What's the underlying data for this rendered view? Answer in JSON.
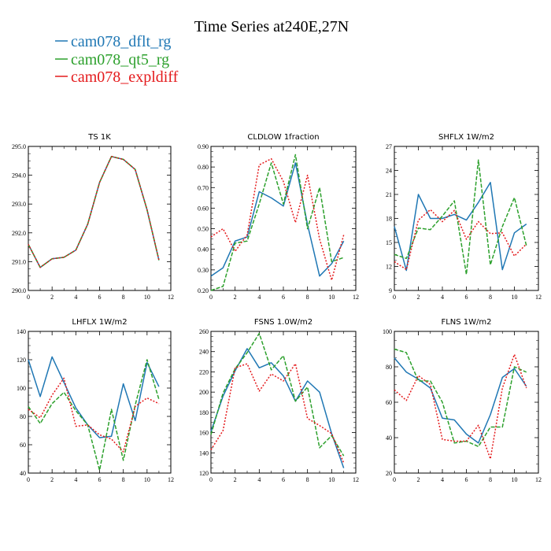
{
  "figure_title": "Time Series at240E,27N",
  "colors": {
    "dflt": "#1f77b4",
    "qt5": "#2ca02c",
    "expldiff": "#e41a1c"
  },
  "legend": [
    {
      "label": "cam078_dflt_rg",
      "color": "#1f77b4",
      "dash": "solid"
    },
    {
      "label": "cam078_qt5_rg",
      "color": "#2ca02c",
      "dash": "dashed"
    },
    {
      "label": "cam078_expldiff",
      "color": "#e41a1c",
      "dash": "dotted"
    }
  ],
  "chart_data": [
    {
      "type": "line",
      "title": "TS   1K",
      "x": [
        0,
        1,
        2,
        3,
        4,
        5,
        6,
        7,
        8,
        9,
        10,
        11
      ],
      "xlim": [
        0,
        12
      ],
      "xticks": [
        "0",
        "2",
        "4",
        "6",
        "8",
        "10",
        "12"
      ],
      "ylim": [
        290,
        295
      ],
      "yticks": [
        "290.0",
        "291.0",
        "292.0",
        "293.0",
        "294.0",
        "295.0"
      ],
      "series": [
        {
          "name": "cam078_dflt_rg",
          "values": [
            291.6,
            290.8,
            291.1,
            291.15,
            291.4,
            292.3,
            293.75,
            294.65,
            294.55,
            294.2,
            292.8,
            291.05
          ]
        },
        {
          "name": "cam078_qt5_rg",
          "values": [
            291.6,
            290.8,
            291.1,
            291.15,
            291.4,
            292.3,
            293.75,
            294.65,
            294.55,
            294.2,
            292.8,
            291.05
          ]
        },
        {
          "name": "cam078_expldiff",
          "values": [
            291.6,
            290.8,
            291.1,
            291.15,
            291.4,
            292.3,
            293.75,
            294.65,
            294.55,
            294.2,
            292.8,
            291.05
          ]
        }
      ]
    },
    {
      "type": "line",
      "title": "CLDLOW   1fraction",
      "x": [
        0,
        1,
        2,
        3,
        4,
        5,
        6,
        7,
        8,
        9,
        10,
        11
      ],
      "xlim": [
        0,
        12
      ],
      "xticks": [
        "0",
        "2",
        "4",
        "6",
        "8",
        "10",
        "12"
      ],
      "ylim": [
        0.2,
        0.9
      ],
      "yticks": [
        "0.20",
        "0.30",
        "0.40",
        "0.50",
        "0.60",
        "0.70",
        "0.80",
        "0.90"
      ],
      "series": [
        {
          "name": "cam078_dflt_rg",
          "values": [
            0.27,
            0.31,
            0.44,
            0.46,
            0.68,
            0.65,
            0.61,
            0.82,
            0.52,
            0.27,
            0.33,
            0.44
          ]
        },
        {
          "name": "cam078_qt5_rg",
          "values": [
            0.2,
            0.22,
            0.43,
            0.44,
            0.62,
            0.82,
            0.62,
            0.86,
            0.5,
            0.7,
            0.34,
            0.36
          ]
        },
        {
          "name": "cam078_expldiff",
          "values": [
            0.46,
            0.5,
            0.39,
            0.47,
            0.81,
            0.84,
            0.73,
            0.53,
            0.76,
            0.45,
            0.25,
            0.47
          ]
        }
      ]
    },
    {
      "type": "line",
      "title": "SHFLX   1W/m2",
      "x": [
        0,
        1,
        2,
        3,
        4,
        5,
        6,
        7,
        8,
        9,
        10,
        11
      ],
      "xlim": [
        0,
        12
      ],
      "xticks": [
        "0",
        "2",
        "4",
        "6",
        "8",
        "10",
        "12"
      ],
      "ylim": [
        9,
        27
      ],
      "yticks": [
        "9",
        "12",
        "15",
        "18",
        "21",
        "24",
        "27"
      ],
      "series": [
        {
          "name": "cam078_dflt_rg",
          "values": [
            17.0,
            11.5,
            21.0,
            18.0,
            18.0,
            18.5,
            17.8,
            20.0,
            22.5,
            11.6,
            16.2,
            17.3
          ]
        },
        {
          "name": "cam078_qt5_rg",
          "values": [
            13.5,
            13.0,
            16.8,
            16.6,
            18.3,
            20.2,
            11.0,
            25.3,
            12.2,
            17.0,
            20.6,
            14.6
          ]
        },
        {
          "name": "cam078_expldiff",
          "values": [
            12.6,
            11.6,
            17.8,
            19.1,
            17.6,
            19.0,
            15.4,
            17.6,
            16.1,
            16.2,
            13.3,
            14.8
          ]
        }
      ]
    },
    {
      "type": "line",
      "title": "LHFLX   1W/m2",
      "x": [
        0,
        1,
        2,
        3,
        4,
        5,
        6,
        7,
        8,
        9,
        10,
        11
      ],
      "xlim": [
        0,
        12
      ],
      "xticks": [
        "0",
        "2",
        "4",
        "6",
        "8",
        "10",
        "12"
      ],
      "ylim": [
        40,
        140
      ],
      "yticks": [
        "40",
        "60",
        "80",
        "100",
        "120",
        "140"
      ],
      "series": [
        {
          "name": "cam078_dflt_rg",
          "values": [
            120,
            94,
            122,
            104,
            86,
            74,
            65,
            66,
            103,
            77,
            118,
            101
          ]
        },
        {
          "name": "cam078_qt5_rg",
          "values": [
            87,
            75,
            89,
            97,
            84,
            74,
            42,
            85,
            49,
            88,
            120,
            92
          ]
        },
        {
          "name": "cam078_expldiff",
          "values": [
            85,
            79,
            95,
            107,
            73,
            74,
            67,
            64,
            55,
            87,
            93,
            89
          ]
        }
      ]
    },
    {
      "type": "line",
      "title": "FSNS   1.0W/m2",
      "x": [
        0,
        1,
        2,
        3,
        4,
        5,
        6,
        7,
        8,
        9,
        10,
        11
      ],
      "xlim": [
        0,
        12
      ],
      "xticks": [
        "0",
        "2",
        "4",
        "6",
        "8",
        "10",
        "12"
      ],
      "ylim": [
        120,
        260
      ],
      "yticks": [
        "120",
        "140",
        "160",
        "180",
        "200",
        "220",
        "240",
        "260"
      ],
      "series": [
        {
          "name": "cam078_dflt_rg",
          "values": [
            161,
            196,
            221,
            243,
            224,
            229,
            216,
            191,
            211,
            200,
            159,
            125
          ]
        },
        {
          "name": "cam078_qt5_rg",
          "values": [
            158,
            199,
            223,
            239,
            258,
            222,
            236,
            191,
            205,
            145,
            157,
            137
          ]
        },
        {
          "name": "cam078_expldiff",
          "values": [
            143,
            162,
            224,
            228,
            201,
            218,
            211,
            228,
            174,
            167,
            159,
            130
          ]
        }
      ]
    },
    {
      "type": "line",
      "title": "FLNS   1W/m2",
      "x": [
        0,
        1,
        2,
        3,
        4,
        5,
        6,
        7,
        8,
        9,
        10,
        11
      ],
      "xlim": [
        0,
        12
      ],
      "xticks": [
        "0",
        "2",
        "4",
        "6",
        "8",
        "10",
        "12"
      ],
      "ylim": [
        20,
        100
      ],
      "yticks": [
        "20",
        "40",
        "60",
        "80",
        "100"
      ],
      "series": [
        {
          "name": "cam078_dflt_rg",
          "values": [
            85,
            77,
            73,
            68,
            51,
            50,
            42,
            37,
            53,
            74,
            79,
            69
          ]
        },
        {
          "name": "cam078_qt5_rg",
          "values": [
            90,
            88,
            72,
            72,
            60,
            37,
            38,
            35,
            46,
            46,
            80,
            77
          ]
        },
        {
          "name": "cam078_expldiff",
          "values": [
            67,
            61,
            75,
            70,
            39,
            38,
            38,
            47,
            28,
            68,
            87,
            68
          ]
        }
      ]
    }
  ]
}
